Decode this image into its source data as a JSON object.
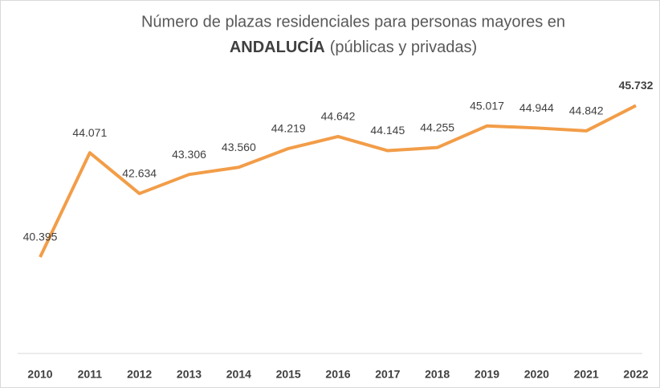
{
  "chart_data": {
    "type": "line",
    "title": [
      "Número de plazas residenciales para personas mayores en",
      "ANDALUCÍA",
      "(públicas y privadas)"
    ],
    "categories": [
      "2010",
      "2011",
      "2012",
      "2013",
      "2014",
      "2015",
      "2016",
      "2017",
      "2018",
      "2019",
      "2020",
      "2021",
      "2022"
    ],
    "series": [
      {
        "color": "#f29d48",
        "values": [
          40395,
          44071,
          42634,
          43306,
          43560,
          44219,
          44642,
          44145,
          44255,
          45017,
          44944,
          44842,
          45732
        ],
        "value_labels": [
          "40.395",
          "44.071",
          "42.634",
          "43.306",
          "43.560",
          "44.219",
          "44.642",
          "44.145",
          "44.255",
          "45.017",
          "44.944",
          "44.842",
          "45.732"
        ]
      }
    ],
    "ylim": [
      37000,
      46000
    ]
  }
}
